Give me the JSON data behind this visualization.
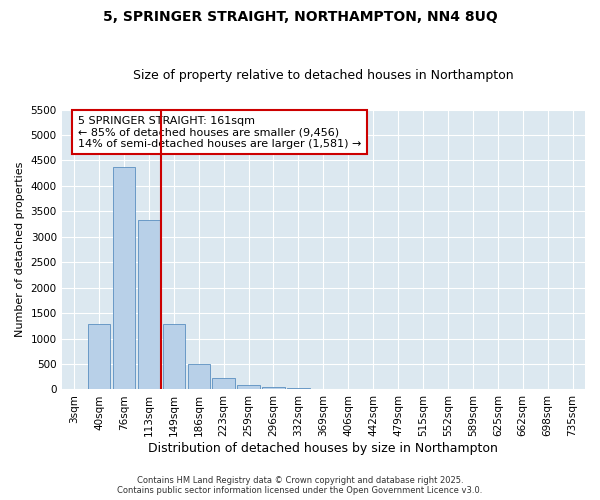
{
  "title": "5, SPRINGER STRAIGHT, NORTHAMPTON, NN4 8UQ",
  "subtitle": "Size of property relative to detached houses in Northampton",
  "xlabel": "Distribution of detached houses by size in Northampton",
  "ylabel": "Number of detached properties",
  "categories": [
    "3sqm",
    "40sqm",
    "76sqm",
    "113sqm",
    "149sqm",
    "186sqm",
    "223sqm",
    "259sqm",
    "296sqm",
    "332sqm",
    "369sqm",
    "406sqm",
    "442sqm",
    "479sqm",
    "515sqm",
    "552sqm",
    "589sqm",
    "625sqm",
    "662sqm",
    "698sqm",
    "735sqm"
  ],
  "values": [
    0,
    1280,
    4380,
    3320,
    1280,
    500,
    230,
    90,
    50,
    30,
    15,
    5,
    0,
    0,
    0,
    0,
    0,
    0,
    0,
    0,
    0
  ],
  "bar_color": "#b8d0e8",
  "bar_edge_color": "#5a8fc0",
  "vline_x_idx": 3.5,
  "vline_color": "#cc0000",
  "annotation_text": "5 SPRINGER STRAIGHT: 161sqm\n← 85% of detached houses are smaller (9,456)\n14% of semi-detached houses are larger (1,581) →",
  "annotation_box_color": "#ffffff",
  "annotation_box_edge": "#cc0000",
  "ylim": [
    0,
    5500
  ],
  "yticks": [
    0,
    500,
    1000,
    1500,
    2000,
    2500,
    3000,
    3500,
    4000,
    4500,
    5000,
    5500
  ],
  "background_color": "#dce8f0",
  "footer": "Contains HM Land Registry data © Crown copyright and database right 2025.\nContains public sector information licensed under the Open Government Licence v3.0.",
  "title_fontsize": 10,
  "subtitle_fontsize": 9,
  "xlabel_fontsize": 9,
  "ylabel_fontsize": 8,
  "tick_fontsize": 7.5,
  "footer_fontsize": 6,
  "ann_fontsize": 8
}
